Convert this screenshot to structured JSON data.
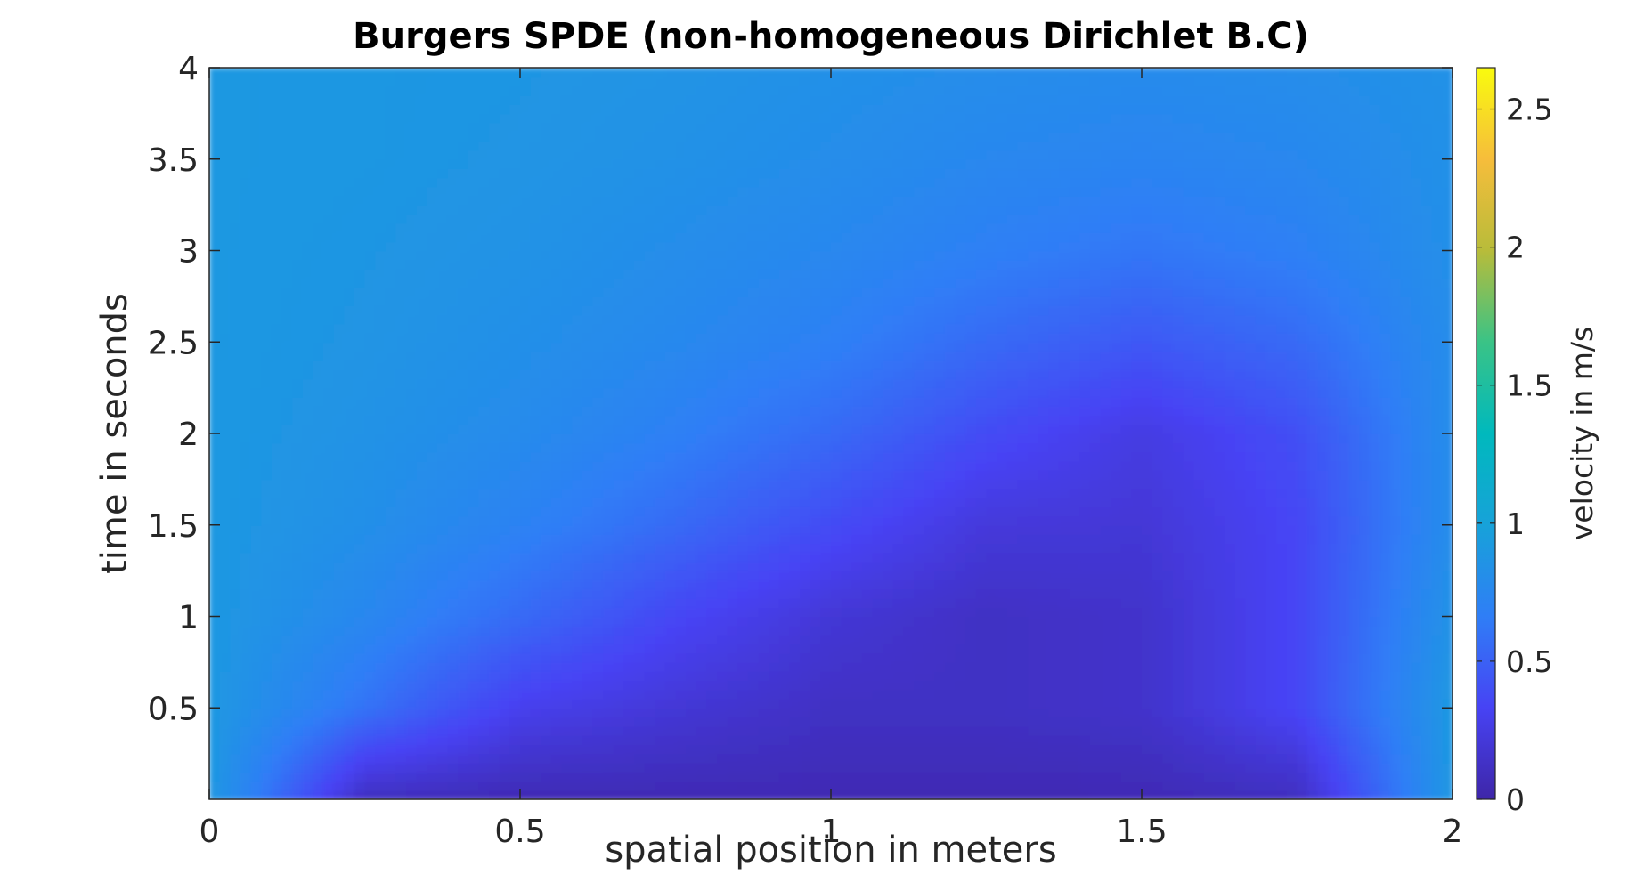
{
  "chart_data": {
    "type": "heatmap",
    "title": "Burgers SPDE (non-homogeneous Dirichlet B.C)",
    "xlabel": "spatial position in meters",
    "ylabel": "time in seconds",
    "xlim": [
      0,
      2
    ],
    "ylim": [
      0,
      4
    ],
    "x_ticks": [
      0,
      0.5,
      1,
      1.5,
      2
    ],
    "x_tick_labels": [
      "0",
      "0.5",
      "1",
      "1.5",
      "2"
    ],
    "y_ticks": [
      0.5,
      1,
      1.5,
      2,
      2.5,
      3,
      3.5,
      4
    ],
    "y_tick_labels": [
      "0.5",
      "1",
      "1.5",
      "2",
      "2.5",
      "3",
      "3.5",
      "4"
    ],
    "colormap": "parula",
    "colorbar": {
      "label": "velocity in m/s",
      "range": [
        0,
        2.65
      ],
      "ticks": [
        0,
        0.5,
        1,
        1.5,
        2,
        2.5
      ],
      "tick_labels": [
        "0",
        "0.5",
        "1",
        "1.5",
        "2",
        "2.5"
      ]
    },
    "grid": false,
    "field_description": "velocity u(x,t); boundaries at x=0 and x=2 near 0.9 m/s; low-velocity region (about 0.05-0.2 m/s) centered near x=1.1-1.4 for t below ~2; field relaxes to about 0.8-0.9 m/s by t=4",
    "samples": {
      "x": [
        0,
        0.25,
        0.5,
        0.75,
        1,
        1.25,
        1.5,
        1.75,
        2
      ],
      "t": [
        0,
        0.5,
        1,
        1.5,
        2,
        2.5,
        3,
        3.5,
        4
      ],
      "values": [
        [
          0.9,
          0.1,
          0.05,
          0.05,
          0.05,
          0.05,
          0.05,
          0.1,
          0.9
        ],
        [
          0.9,
          0.6,
          0.3,
          0.2,
          0.12,
          0.12,
          0.15,
          0.35,
          0.9
        ],
        [
          0.9,
          0.75,
          0.55,
          0.35,
          0.2,
          0.12,
          0.15,
          0.35,
          0.85
        ],
        [
          0.9,
          0.82,
          0.7,
          0.55,
          0.38,
          0.22,
          0.2,
          0.35,
          0.8
        ],
        [
          0.9,
          0.85,
          0.78,
          0.68,
          0.55,
          0.38,
          0.25,
          0.4,
          0.8
        ],
        [
          0.9,
          0.87,
          0.82,
          0.76,
          0.68,
          0.55,
          0.45,
          0.55,
          0.8
        ],
        [
          0.9,
          0.88,
          0.85,
          0.8,
          0.75,
          0.68,
          0.62,
          0.68,
          0.82
        ],
        [
          0.9,
          0.89,
          0.87,
          0.84,
          0.8,
          0.75,
          0.72,
          0.75,
          0.83
        ],
        [
          0.9,
          0.89,
          0.88,
          0.86,
          0.83,
          0.8,
          0.78,
          0.8,
          0.84
        ]
      ]
    }
  }
}
